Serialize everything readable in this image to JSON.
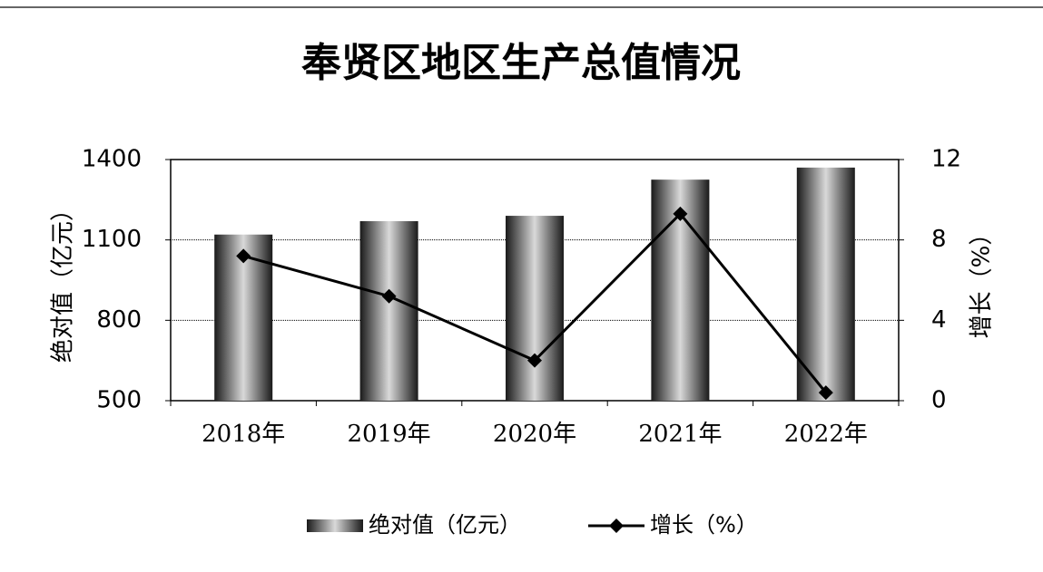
{
  "chart_data": {
    "type": "bar",
    "title": "奉贤区地区生产总值情况",
    "y_label": "绝对值（亿元）",
    "y2_label": "增长（%）",
    "categories": [
      "2018年",
      "2019年",
      "2020年",
      "2021年",
      "2022年"
    ],
    "series": [
      {
        "name": "绝对值（亿元）",
        "type": "bar",
        "color": "#d9d9d9",
        "values": [
          1120,
          1170,
          1190,
          1325,
          1370
        ]
      },
      {
        "name": "增长（%）",
        "type": "line",
        "axis": "y2",
        "color": "#000000",
        "values": [
          7.2,
          5.2,
          2.0,
          9.3,
          0.4
        ]
      }
    ],
    "ylim": [
      500,
      1400
    ],
    "yticks": [
      500,
      800,
      1100,
      1400
    ],
    "y2lim": [
      0,
      12
    ],
    "y2ticks": [
      0,
      4,
      8,
      12
    ],
    "grid": true
  }
}
